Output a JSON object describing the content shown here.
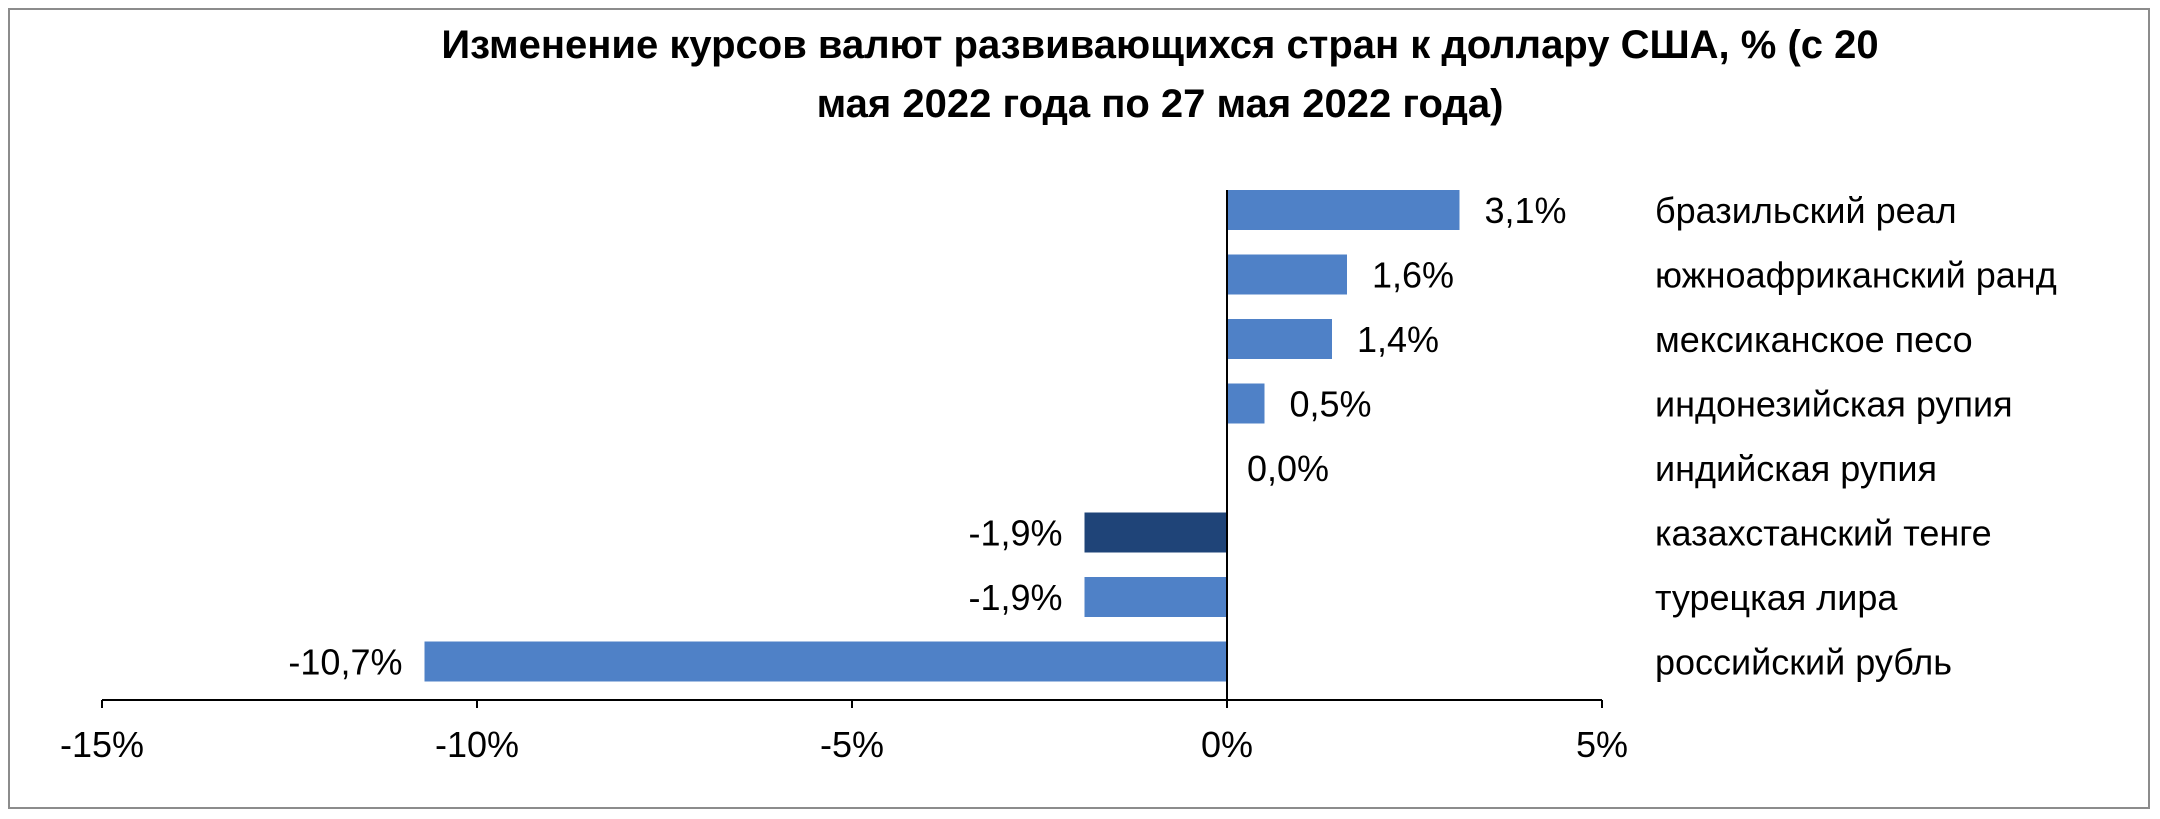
{
  "chart_data": {
    "type": "bar",
    "orientation": "horizontal",
    "title": "Изменение курсов валют развивающихся стран к доллару США, % (с 20 мая 2022 года по 27 мая 2022 года)",
    "title_lines": [
      "Изменение курсов валют развивающихся стран к доллару США, % (с 20",
      "мая 2022 года по 27 мая 2022 года)"
    ],
    "xlabel": "",
    "ylabel": "",
    "xlim": [
      -15,
      5
    ],
    "x_ticks": [
      -15,
      -10,
      -5,
      0,
      5
    ],
    "x_tick_labels": [
      "-15%",
      "-10%",
      "-5%",
      "0%",
      "5%"
    ],
    "grid": false,
    "legend": "none",
    "categories": [
      "бразильский реал",
      "южноафриканский ранд",
      "мексиканское песо",
      "индонезийская рупия",
      "индийская рупия",
      "казахстанский тенге",
      "турецкая лира",
      "российский рубль"
    ],
    "values": [
      3.1,
      1.6,
      1.4,
      0.5,
      0.0,
      -1.9,
      -1.9,
      -10.7
    ],
    "value_labels": [
      "3,1%",
      "1,6%",
      "1,4%",
      "0,5%",
      "0,0%",
      "-1,9%",
      "-1,9%",
      "-10,7%"
    ],
    "highlight_category": "казахстанский тенге",
    "colors": {
      "bar": "#4f81c7",
      "highlight": "#1f4478",
      "axis": "#000000"
    }
  }
}
